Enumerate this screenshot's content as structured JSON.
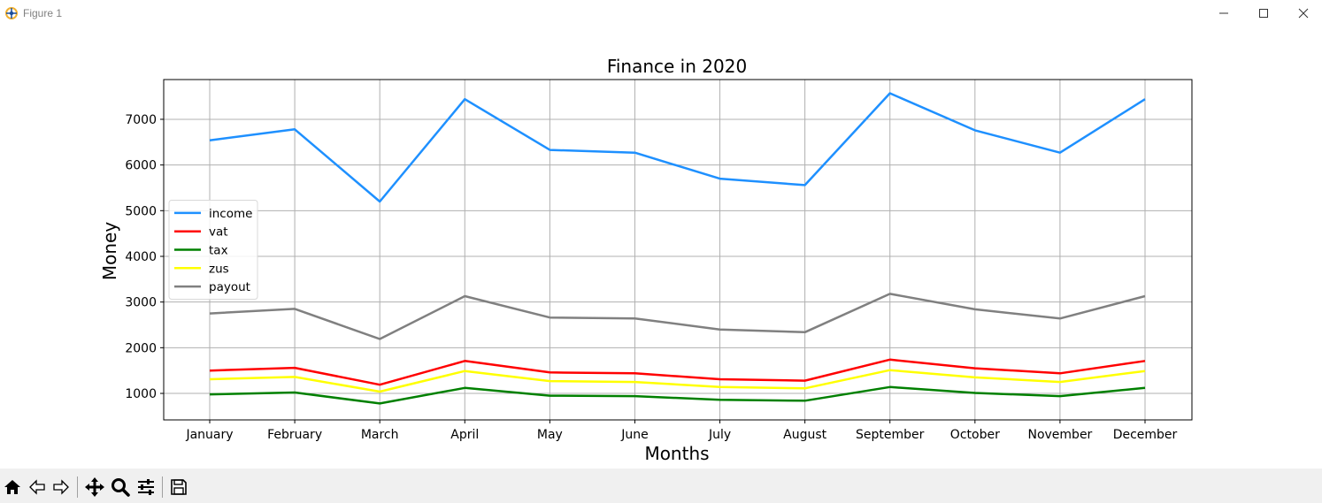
{
  "window": {
    "title": "Figure 1",
    "controls": {
      "minimize": "minimize",
      "maximize": "maximize",
      "close": "close"
    }
  },
  "toolbar": {
    "buttons": [
      {
        "name": "home-button",
        "icon": "home-icon"
      },
      {
        "name": "back-button",
        "icon": "arrow-left-icon"
      },
      {
        "name": "forward-button",
        "icon": "arrow-right-icon"
      },
      {
        "name": "pan-button",
        "icon": "move-icon"
      },
      {
        "name": "zoom-button",
        "icon": "magnifier-icon"
      },
      {
        "name": "configure-subplots-button",
        "icon": "sliders-icon"
      },
      {
        "name": "save-button",
        "icon": "floppy-disk-icon"
      }
    ]
  },
  "chart_data": {
    "type": "line",
    "title": "Finance in 2020",
    "xlabel": "Months",
    "ylabel": "Money",
    "categories": [
      "January",
      "February",
      "March",
      "April",
      "May",
      "June",
      "July",
      "August",
      "September",
      "October",
      "November",
      "December"
    ],
    "ylim": [
      420,
      7870
    ],
    "yticks": [
      1000,
      2000,
      3000,
      4000,
      5000,
      6000,
      7000
    ],
    "grid": true,
    "legend_position": "center-left",
    "series": [
      {
        "name": "income",
        "color": "#1e90ff",
        "values": [
          6540,
          6780,
          5200,
          7440,
          6330,
          6270,
          5700,
          5560,
          7570,
          6760,
          6270,
          7440
        ]
      },
      {
        "name": "vat",
        "color": "#ff0000",
        "values": [
          1500,
          1560,
          1190,
          1710,
          1460,
          1440,
          1310,
          1280,
          1740,
          1550,
          1440,
          1710
        ]
      },
      {
        "name": "tax",
        "color": "#008000",
        "values": [
          980,
          1020,
          780,
          1120,
          950,
          940,
          860,
          840,
          1140,
          1010,
          940,
          1120
        ]
      },
      {
        "name": "zus",
        "color": "#ffff00",
        "values": [
          1310,
          1360,
          1040,
          1490,
          1270,
          1250,
          1140,
          1110,
          1510,
          1350,
          1250,
          1490
        ]
      },
      {
        "name": "payout",
        "color": "#808080",
        "values": [
          2750,
          2850,
          2190,
          3130,
          2660,
          2640,
          2400,
          2340,
          3180,
          2840,
          2640,
          3130
        ]
      }
    ]
  }
}
